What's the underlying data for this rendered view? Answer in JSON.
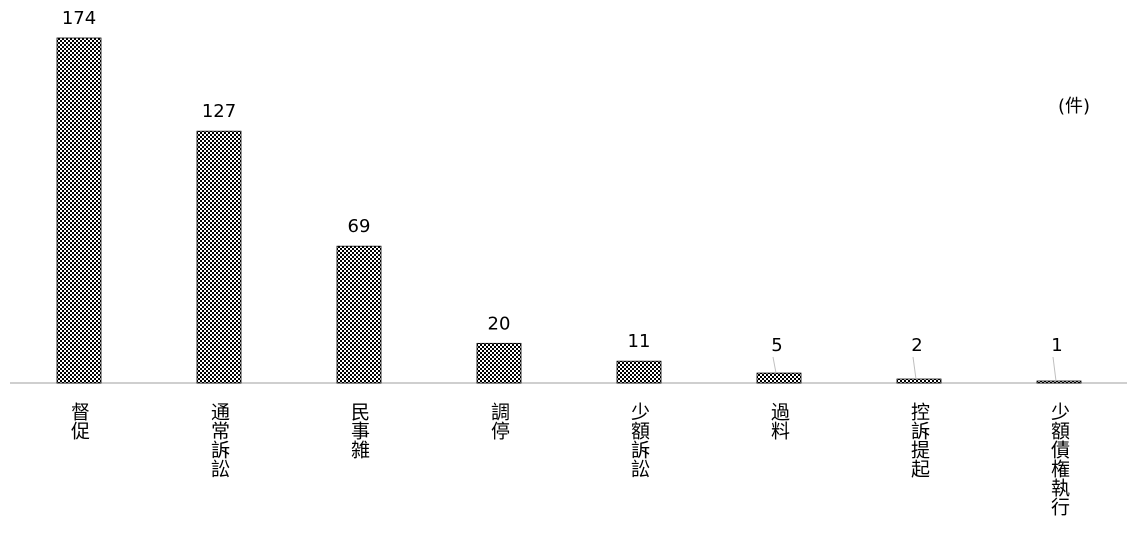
{
  "chart_data": {
    "type": "bar",
    "unit": "(件)",
    "categories": [
      "督促",
      "通常訴訟",
      "民事雑",
      "調停",
      "少額訴訟",
      "過料",
      "控訴提起",
      "少額債権執行"
    ],
    "values": [
      174,
      127,
      69,
      20,
      11,
      5,
      2,
      1
    ],
    "data_labels": [
      "174",
      "127",
      "69",
      "20",
      "11",
      "5",
      "2",
      "1"
    ],
    "ylim": [
      0,
      174
    ],
    "grid": false,
    "legend": "none",
    "bar_pattern": "dotted-crosshatch",
    "colors": {
      "bar_fill": "#000000",
      "axis": "#bfbfbf",
      "text": "#000000"
    }
  }
}
